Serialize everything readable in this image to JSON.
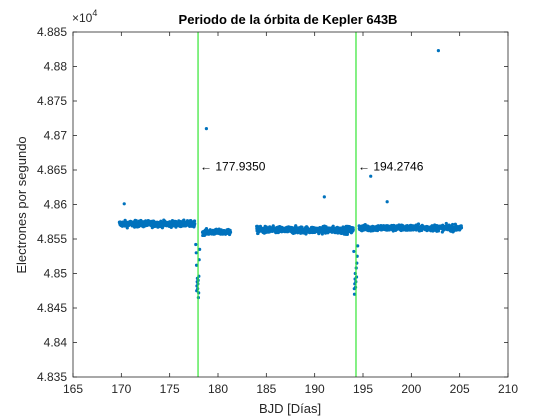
{
  "chart_data": {
    "type": "scatter",
    "title": "Periodo de la órbita de Kepler 643B",
    "xlabel": "BJD [Días]",
    "ylabel": "Electrones por segundo",
    "exponent": "×10",
    "exponent_power": "4",
    "xlim": [
      165,
      210
    ],
    "ylim": [
      4.835,
      4.885
    ],
    "xticks": [
      165,
      170,
      175,
      180,
      185,
      190,
      195,
      200,
      205,
      210
    ],
    "xtick_labels": [
      "165",
      "170",
      "175",
      "180",
      "185",
      "190",
      "195",
      "200",
      "205",
      "210"
    ],
    "yticks": [
      4.835,
      4.84,
      4.845,
      4.85,
      4.855,
      4.86,
      4.865,
      4.87,
      4.875,
      4.88,
      4.885
    ],
    "ytick_labels": [
      "4.835",
      "4.84",
      "4.845",
      "4.85",
      "4.855",
      "4.86",
      "4.865",
      "4.87",
      "4.875",
      "4.88",
      "4.885"
    ],
    "grid": false,
    "point_color": "#0072BD",
    "line_color": "#33E633",
    "segments": [
      {
        "x_start": 169.8,
        "x_end": 177.6,
        "baseline": 4.8572,
        "spread": 0.0008
      },
      {
        "x_start": 178.4,
        "x_end": 181.3,
        "baseline": 4.856,
        "spread": 0.0007
      },
      {
        "x_start": 184.0,
        "x_end": 194.0,
        "baseline": 4.8563,
        "spread": 0.0009
      },
      {
        "x_start": 194.6,
        "x_end": 205.2,
        "baseline": 4.8566,
        "spread": 0.0008
      }
    ],
    "transit_points": [
      {
        "x": 177.8,
        "y": 4.8475
      },
      {
        "x": 177.82,
        "y": 4.8482
      },
      {
        "x": 177.85,
        "y": 4.8488
      },
      {
        "x": 177.87,
        "y": 4.8493
      },
      {
        "x": 177.9,
        "y": 4.8478
      },
      {
        "x": 177.92,
        "y": 4.8485
      },
      {
        "x": 177.95,
        "y": 4.849
      },
      {
        "x": 177.97,
        "y": 4.8465
      },
      {
        "x": 178.0,
        "y": 4.8472
      },
      {
        "x": 178.02,
        "y": 4.8496
      },
      {
        "x": 177.78,
        "y": 4.8512
      },
      {
        "x": 178.05,
        "y": 4.852
      },
      {
        "x": 177.75,
        "y": 4.853
      },
      {
        "x": 178.1,
        "y": 4.8535
      },
      {
        "x": 177.7,
        "y": 4.8542
      },
      {
        "x": 194.1,
        "y": 4.8478
      },
      {
        "x": 194.12,
        "y": 4.847
      },
      {
        "x": 194.15,
        "y": 4.8485
      },
      {
        "x": 194.18,
        "y": 4.8492
      },
      {
        "x": 194.2,
        "y": 4.85
      },
      {
        "x": 194.23,
        "y": 4.848
      },
      {
        "x": 194.26,
        "y": 4.8488
      },
      {
        "x": 194.3,
        "y": 4.8508
      },
      {
        "x": 194.33,
        "y": 4.8495
      },
      {
        "x": 194.36,
        "y": 4.8515
      },
      {
        "x": 194.4,
        "y": 4.8525
      },
      {
        "x": 194.05,
        "y": 4.8532
      },
      {
        "x": 194.45,
        "y": 4.854
      }
    ],
    "outlier_points": [
      {
        "x": 178.8,
        "y": 4.871
      },
      {
        "x": 195.8,
        "y": 4.8641
      },
      {
        "x": 202.8,
        "y": 4.8823
      },
      {
        "x": 191.0,
        "y": 4.8611
      },
      {
        "x": 170.3,
        "y": 4.8601
      },
      {
        "x": 197.5,
        "y": 4.8604
      }
    ],
    "transit_lines": [
      177.935,
      194.2746
    ],
    "annotations": [
      {
        "text": "← 177.9350",
        "x": 177.935,
        "y": 4.8655
      },
      {
        "text": "← 194.2746",
        "x": 194.2746,
        "y": 4.8655
      }
    ]
  }
}
